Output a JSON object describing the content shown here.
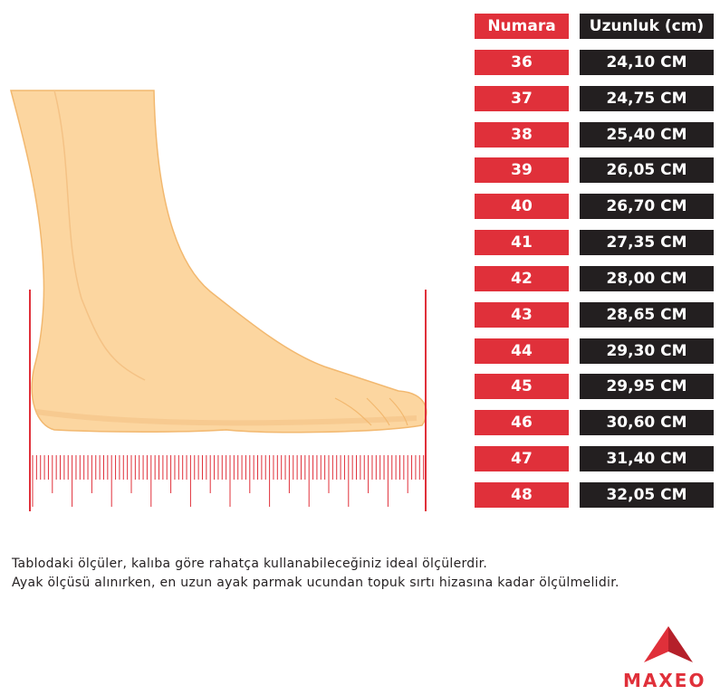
{
  "table": {
    "header": [
      "Numara",
      "Uzunluk (cm)"
    ],
    "rows": [
      [
        "36",
        "24,10 CM"
      ],
      [
        "37",
        "24,75 CM"
      ],
      [
        "38",
        "25,40 CM"
      ],
      [
        "39",
        "26,05 CM"
      ],
      [
        "40",
        "26,70 CM"
      ],
      [
        "41",
        "27,35 CM"
      ],
      [
        "42",
        "28,00 CM"
      ],
      [
        "43",
        "28,65 CM"
      ],
      [
        "44",
        "29,30 CM"
      ],
      [
        "45",
        "29,95 CM"
      ],
      [
        "46",
        "30,60 CM"
      ],
      [
        "47",
        "31,40 CM"
      ],
      [
        "48",
        "32,05 CM"
      ]
    ]
  },
  "note": {
    "lines": [
      "Tablodaki ölçüler, kalıba göre rahatça kullanabileceğiniz ideal ölçülerdir.",
      "Ayak ölçüsü alınırken, en uzun ayak parmak ucundan topuk sırtı hizasına kadar ölçülmelidir."
    ]
  },
  "logo": {
    "text": "MAXEO"
  }
}
